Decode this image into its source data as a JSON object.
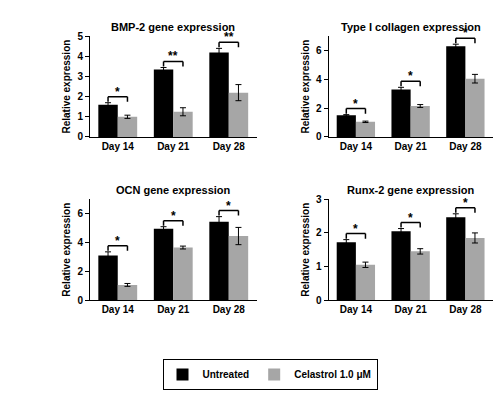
{
  "chart_data": [
    {
      "type": "bar",
      "title": "BMP-2 gene expression",
      "y_label": "Relative expression",
      "categories": [
        "Day 14",
        "Day 21",
        "Day 28"
      ],
      "series": [
        {
          "name": "Untreated",
          "color": "#000000",
          "values": [
            1.6,
            3.35,
            4.2
          ],
          "errors": [
            0.1,
            0.1,
            0.2
          ]
        },
        {
          "name": "Celastrol 1.0 μM",
          "color": "#a6a6a6",
          "values": [
            1.0,
            1.25,
            2.2
          ],
          "errors": [
            0.08,
            0.2,
            0.4
          ]
        }
      ],
      "significance": [
        "*",
        "**",
        "**"
      ],
      "ylim": [
        0,
        5
      ],
      "yticks": [
        0,
        1,
        2,
        3,
        4,
        5
      ],
      "grid": false,
      "legend": "bottom"
    },
    {
      "type": "bar",
      "title": "Type I collagen expression",
      "y_label": "Relative expression",
      "categories": [
        "Day 14",
        "Day 21",
        "Day 28"
      ],
      "series": [
        {
          "name": "Untreated",
          "color": "#000000",
          "values": [
            1.5,
            3.3,
            6.3
          ],
          "errors": [
            0.05,
            0.15,
            0.15
          ]
        },
        {
          "name": "Celastrol 1.0 μM",
          "color": "#a6a6a6",
          "values": [
            1.05,
            2.15,
            4.05
          ],
          "errors": [
            0.05,
            0.1,
            0.3
          ]
        }
      ],
      "significance": [
        "*",
        "*",
        "*"
      ],
      "ylim": [
        0,
        7
      ],
      "yticks": [
        0,
        2,
        4,
        6
      ],
      "grid": false,
      "legend": "bottom"
    },
    {
      "type": "bar",
      "title": "OCN gene expression",
      "y_label": "Relative expression",
      "categories": [
        "Day 14",
        "Day 21",
        "Day 28"
      ],
      "series": [
        {
          "name": "Untreated",
          "color": "#000000",
          "values": [
            3.1,
            4.95,
            5.45
          ],
          "errors": [
            0.25,
            0.15,
            0.35
          ]
        },
        {
          "name": "Celastrol 1.0 μM",
          "color": "#a6a6a6",
          "values": [
            1.05,
            3.65,
            4.45
          ],
          "errors": [
            0.1,
            0.1,
            0.6
          ]
        }
      ],
      "significance": [
        "*",
        "*",
        "*"
      ],
      "ylim": [
        0,
        7
      ],
      "yticks": [
        0,
        2,
        4,
        6
      ],
      "grid": false,
      "legend": "bottom"
    },
    {
      "type": "bar",
      "title": "Runx-2 gene expression",
      "y_label": "Relative expression",
      "categories": [
        "Day 14",
        "Day 21",
        "Day 28"
      ],
      "series": [
        {
          "name": "Untreated",
          "color": "#000000",
          "values": [
            1.72,
            2.05,
            2.47
          ],
          "errors": [
            0.08,
            0.08,
            0.1
          ]
        },
        {
          "name": "Celastrol 1.0 μM",
          "color": "#a6a6a6",
          "values": [
            1.05,
            1.45,
            1.85
          ],
          "errors": [
            0.08,
            0.08,
            0.15
          ]
        }
      ],
      "significance": [
        "*",
        "*",
        "*"
      ],
      "ylim": [
        0,
        3
      ],
      "yticks": [
        0,
        1,
        2,
        3
      ],
      "grid": false,
      "legend": "bottom"
    }
  ]
}
